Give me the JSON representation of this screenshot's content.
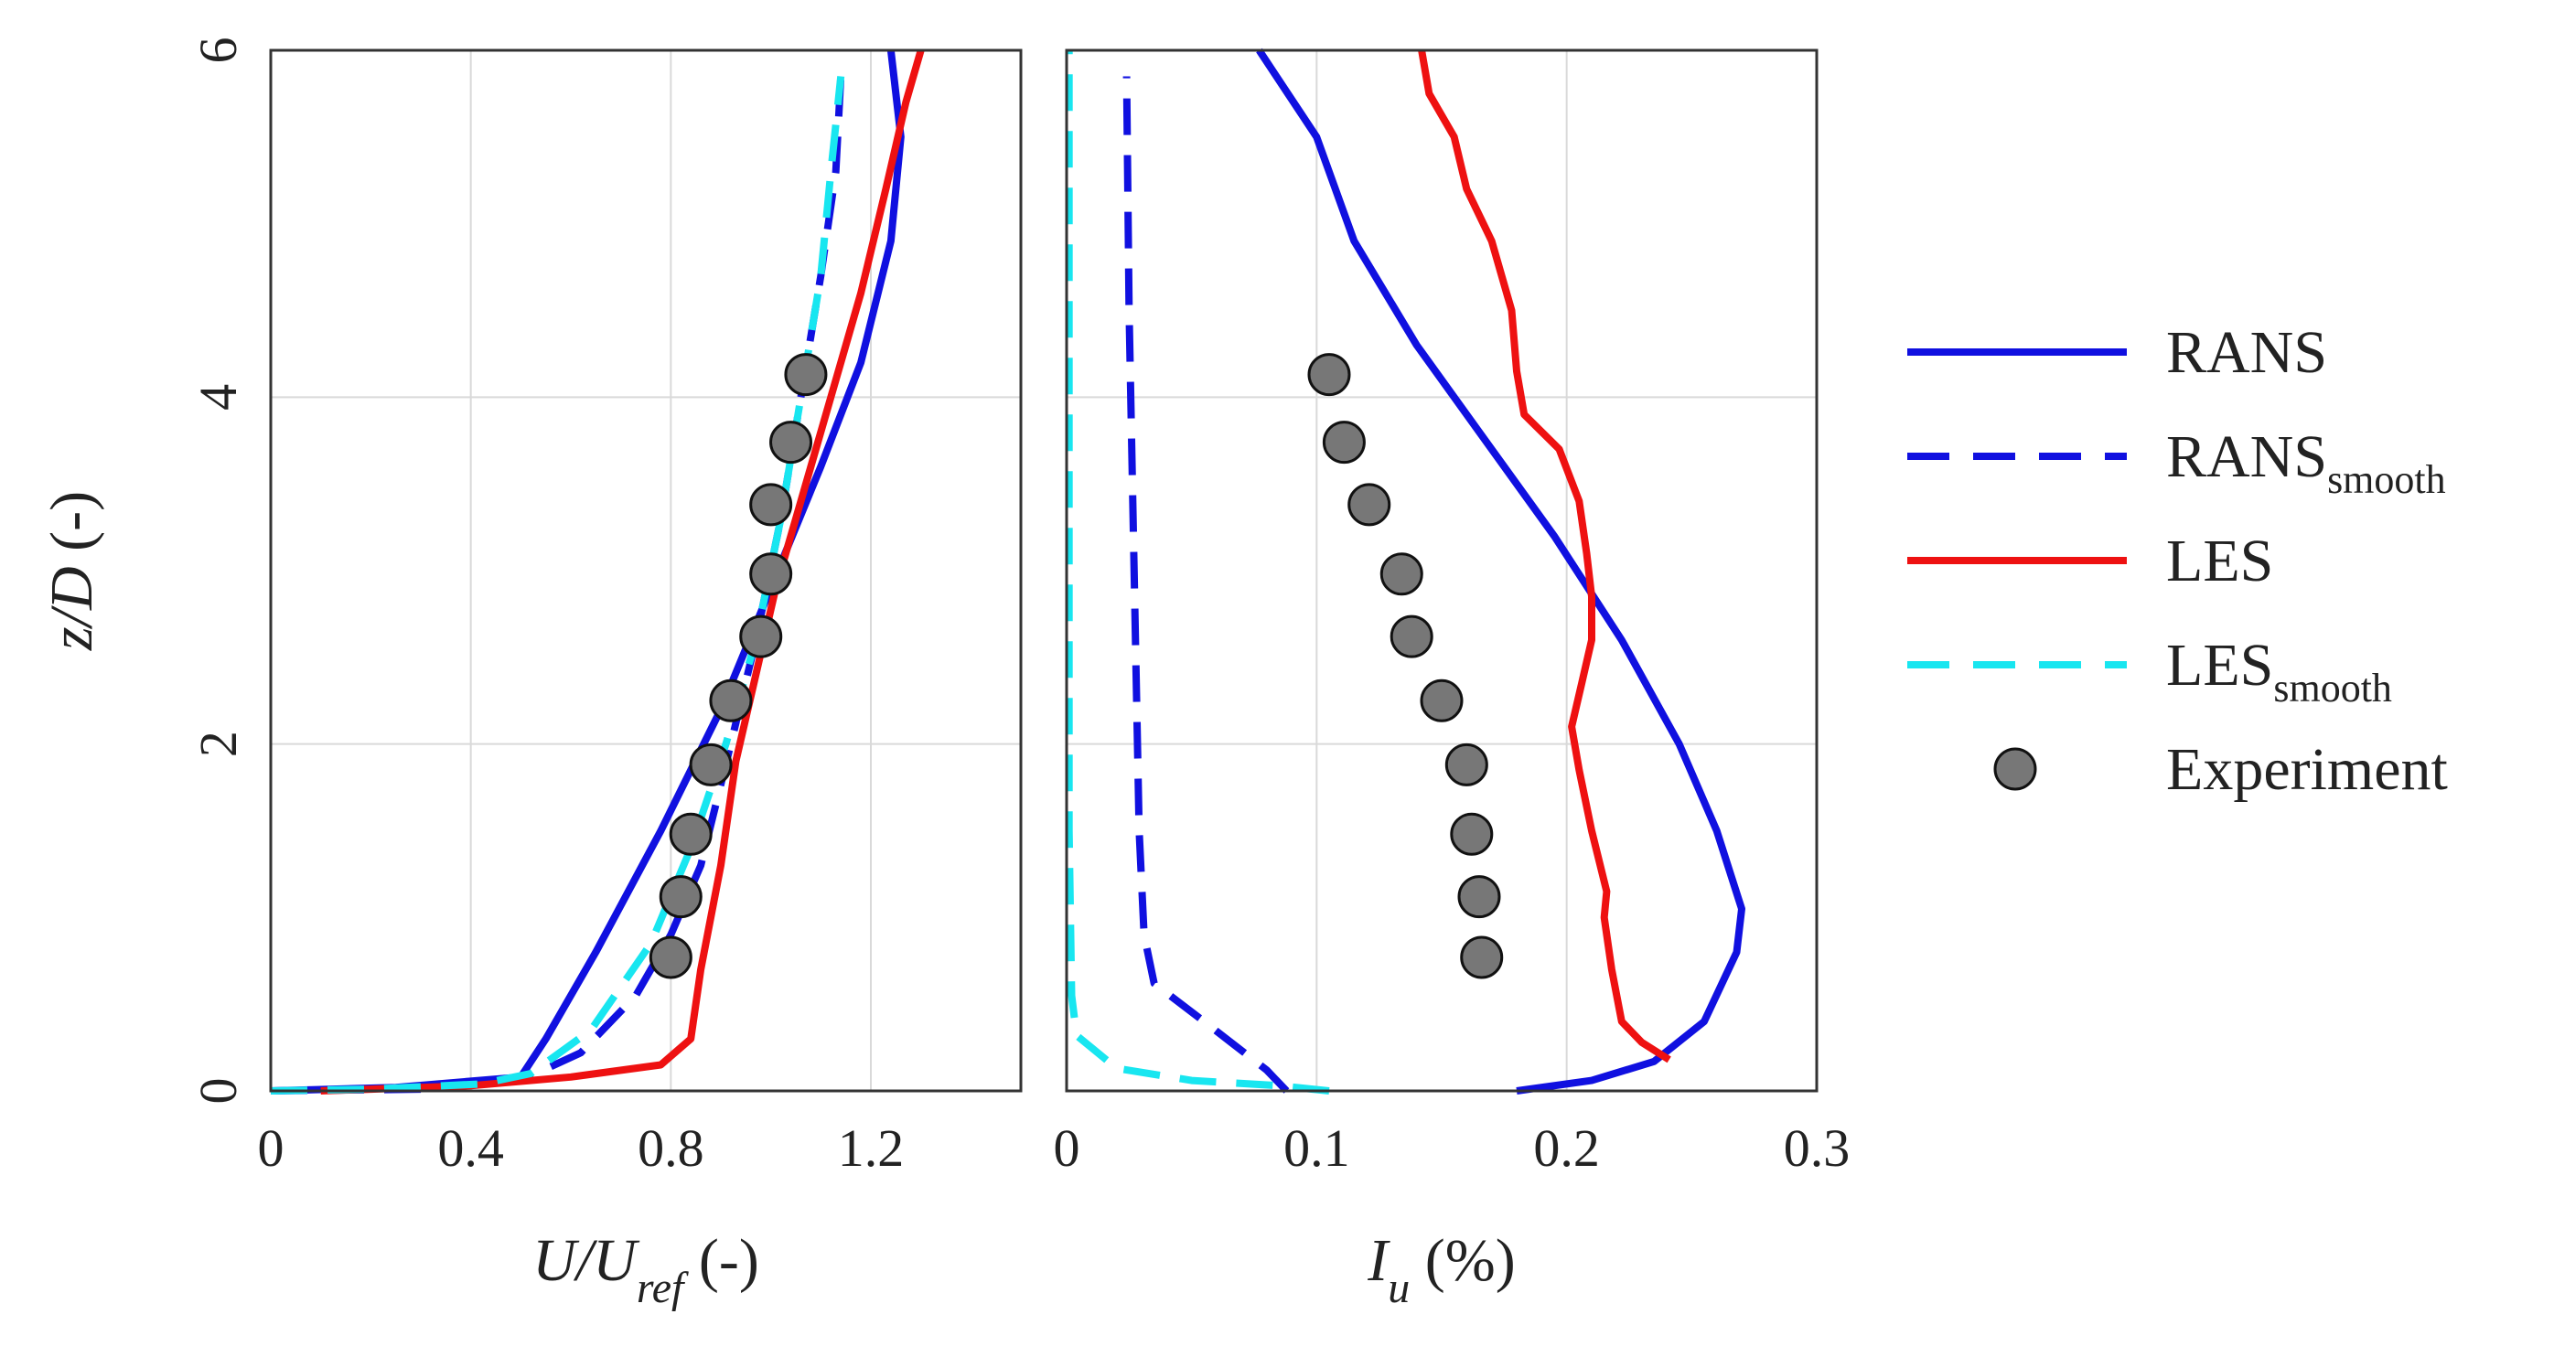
{
  "chart_data": [
    {
      "type": "line",
      "panel": "left",
      "xlabel": {
        "main": "U/U",
        "sub": "ref",
        "unit": " (-)"
      },
      "ylabel": {
        "main": "z/D",
        "unit": " (-)"
      },
      "xlim": [
        0,
        1.5
      ],
      "ylim": [
        0,
        6
      ],
      "xticks": [
        0,
        0.4,
        0.8,
        1.2
      ],
      "xtick_labels": [
        "0",
        "0.4",
        "0.8",
        "1.2"
      ],
      "yticks": [
        0,
        2,
        4,
        6
      ],
      "ytick_labels": [
        "0",
        "2",
        "4",
        "6"
      ],
      "grid": true,
      "series": [
        {
          "name": "RANS",
          "color": "#1010e0",
          "style": "solid",
          "points": [
            [
              0,
              0
            ],
            [
              0.25,
              0.02
            ],
            [
              0.5,
              0.08
            ],
            [
              0.55,
              0.3
            ],
            [
              0.65,
              0.8
            ],
            [
              0.78,
              1.5
            ],
            [
              0.9,
              2.2
            ],
            [
              1.0,
              2.9
            ],
            [
              1.1,
              3.6
            ],
            [
              1.18,
              4.2
            ],
            [
              1.24,
              4.9
            ],
            [
              1.26,
              5.5
            ],
            [
              1.24,
              6.0
            ]
          ]
        },
        {
          "name": "RANS_smooth",
          "color": "#1010e0",
          "style": "dashed",
          "points": [
            [
              0,
              0
            ],
            [
              0.3,
              0.01
            ],
            [
              0.5,
              0.06
            ],
            [
              0.62,
              0.22
            ],
            [
              0.73,
              0.55
            ],
            [
              0.8,
              0.9
            ],
            [
              0.86,
              1.3
            ],
            [
              0.92,
              2.0
            ],
            [
              0.97,
              2.6
            ],
            [
              1.02,
              3.3
            ],
            [
              1.06,
              4.0
            ],
            [
              1.1,
              4.7
            ],
            [
              1.13,
              5.3
            ],
            [
              1.14,
              5.85
            ]
          ]
        },
        {
          "name": "LES",
          "color": "#ee1111",
          "style": "solid",
          "points": [
            [
              0.1,
              0
            ],
            [
              0.4,
              0.03
            ],
            [
              0.6,
              0.08
            ],
            [
              0.78,
              0.15
            ],
            [
              0.84,
              0.3
            ],
            [
              0.86,
              0.7
            ],
            [
              0.9,
              1.3
            ],
            [
              0.93,
              1.9
            ],
            [
              0.97,
              2.4
            ],
            [
              1.01,
              2.9
            ],
            [
              1.06,
              3.4
            ],
            [
              1.12,
              4.0
            ],
            [
              1.18,
              4.6
            ],
            [
              1.23,
              5.2
            ],
            [
              1.27,
              5.7
            ],
            [
              1.3,
              6.0
            ]
          ]
        },
        {
          "name": "LES_smooth",
          "color": "#18e6f0",
          "style": "dashed",
          "points": [
            [
              0,
              0
            ],
            [
              0.2,
              0.01
            ],
            [
              0.42,
              0.04
            ],
            [
              0.52,
              0.1
            ],
            [
              0.64,
              0.35
            ],
            [
              0.76,
              0.85
            ],
            [
              0.84,
              1.4
            ],
            [
              0.91,
              2.0
            ],
            [
              0.97,
              2.6
            ],
            [
              1.02,
              3.3
            ],
            [
              1.06,
              4.0
            ],
            [
              1.1,
              4.7
            ],
            [
              1.12,
              5.3
            ],
            [
              1.14,
              5.85
            ]
          ]
        },
        {
          "name": "Experiment",
          "type": "scatter",
          "color": "#777777",
          "points": [
            [
              0.8,
              0.77
            ],
            [
              0.82,
              1.12
            ],
            [
              0.84,
              1.48
            ],
            [
              0.88,
              1.88
            ],
            [
              0.92,
              2.25
            ],
            [
              0.98,
              2.62
            ],
            [
              1.0,
              2.98
            ],
            [
              1.0,
              3.38
            ],
            [
              1.04,
              3.74
            ],
            [
              1.07,
              4.13
            ]
          ]
        }
      ]
    },
    {
      "type": "line",
      "panel": "right",
      "xlabel": {
        "main": "I",
        "sub": "u",
        "unit": " (%)"
      },
      "xlim": [
        0,
        0.3
      ],
      "ylim": [
        0,
        6
      ],
      "xticks": [
        0,
        0.1,
        0.2,
        0.3
      ],
      "xtick_labels": [
        "0",
        "0.1",
        "0.2",
        "0.3"
      ],
      "yticks": [
        0,
        2,
        4,
        6
      ],
      "grid": true,
      "series": [
        {
          "name": "RANS",
          "color": "#1010e0",
          "style": "solid",
          "points": [
            [
              0.18,
              0
            ],
            [
              0.21,
              0.06
            ],
            [
              0.235,
              0.17
            ],
            [
              0.255,
              0.4
            ],
            [
              0.268,
              0.8
            ],
            [
              0.27,
              1.05
            ],
            [
              0.26,
              1.5
            ],
            [
              0.245,
              2.0
            ],
            [
              0.222,
              2.6
            ],
            [
              0.195,
              3.2
            ],
            [
              0.165,
              3.8
            ],
            [
              0.14,
              4.3
            ],
            [
              0.115,
              4.9
            ],
            [
              0.1,
              5.5
            ],
            [
              0.077,
              6.0
            ]
          ]
        },
        {
          "name": "RANS_smooth",
          "color": "#1010e0",
          "style": "dashed",
          "points": [
            [
              0.088,
              0
            ],
            [
              0.08,
              0.12
            ],
            [
              0.055,
              0.4
            ],
            [
              0.035,
              0.62
            ],
            [
              0.031,
              0.9
            ],
            [
              0.029,
              1.5
            ],
            [
              0.027,
              3.0
            ],
            [
              0.025,
              4.5
            ],
            [
              0.024,
              5.85
            ]
          ]
        },
        {
          "name": "LES",
          "color": "#ee1111",
          "style": "solid",
          "points": [
            [
              0.241,
              0.18
            ],
            [
              0.23,
              0.28
            ],
            [
              0.222,
              0.4
            ],
            [
              0.218,
              0.7
            ],
            [
              0.215,
              1.0
            ],
            [
              0.216,
              1.15
            ],
            [
              0.21,
              1.5
            ],
            [
              0.205,
              1.85
            ],
            [
              0.202,
              2.1
            ],
            [
              0.206,
              2.35
            ],
            [
              0.21,
              2.6
            ],
            [
              0.21,
              2.85
            ],
            [
              0.208,
              3.1
            ],
            [
              0.205,
              3.4
            ],
            [
              0.197,
              3.7
            ],
            [
              0.183,
              3.9
            ],
            [
              0.18,
              4.15
            ],
            [
              0.178,
              4.5
            ],
            [
              0.17,
              4.9
            ],
            [
              0.16,
              5.2
            ],
            [
              0.155,
              5.5
            ],
            [
              0.145,
              5.75
            ],
            [
              0.142,
              6.0
            ]
          ]
        },
        {
          "name": "LES_smooth",
          "color": "#18e6f0",
          "style": "dashed",
          "points": [
            [
              0.105,
              0
            ],
            [
              0.085,
              0.03
            ],
            [
              0.05,
              0.06
            ],
            [
              0.02,
              0.13
            ],
            [
              0.004,
              0.32
            ],
            [
              0.002,
              0.55
            ],
            [
              0.001,
              1.5
            ],
            [
              0.001,
              3.0
            ],
            [
              0.001,
              4.5
            ],
            [
              0.001,
              6.0
            ]
          ]
        },
        {
          "name": "Experiment",
          "type": "scatter",
          "color": "#777777",
          "points": [
            [
              0.166,
              0.77
            ],
            [
              0.165,
              1.12
            ],
            [
              0.162,
              1.48
            ],
            [
              0.16,
              1.88
            ],
            [
              0.15,
              2.25
            ],
            [
              0.138,
              2.62
            ],
            [
              0.134,
              2.98
            ],
            [
              0.121,
              3.38
            ],
            [
              0.111,
              3.74
            ],
            [
              0.105,
              4.13
            ]
          ]
        }
      ]
    }
  ],
  "legend": {
    "position": "right",
    "entries": [
      {
        "label": "RANS",
        "sub": "",
        "color": "#1010e0",
        "style": "solid"
      },
      {
        "label": "RANS",
        "sub": "smooth",
        "color": "#1010e0",
        "style": "dashed"
      },
      {
        "label": "LES",
        "sub": "",
        "color": "#ee1111",
        "style": "solid"
      },
      {
        "label": "LES",
        "sub": "smooth",
        "color": "#18e6f0",
        "style": "dashed"
      },
      {
        "label": "Experiment",
        "sub": "",
        "color": "#777777",
        "style": "marker"
      }
    ]
  }
}
